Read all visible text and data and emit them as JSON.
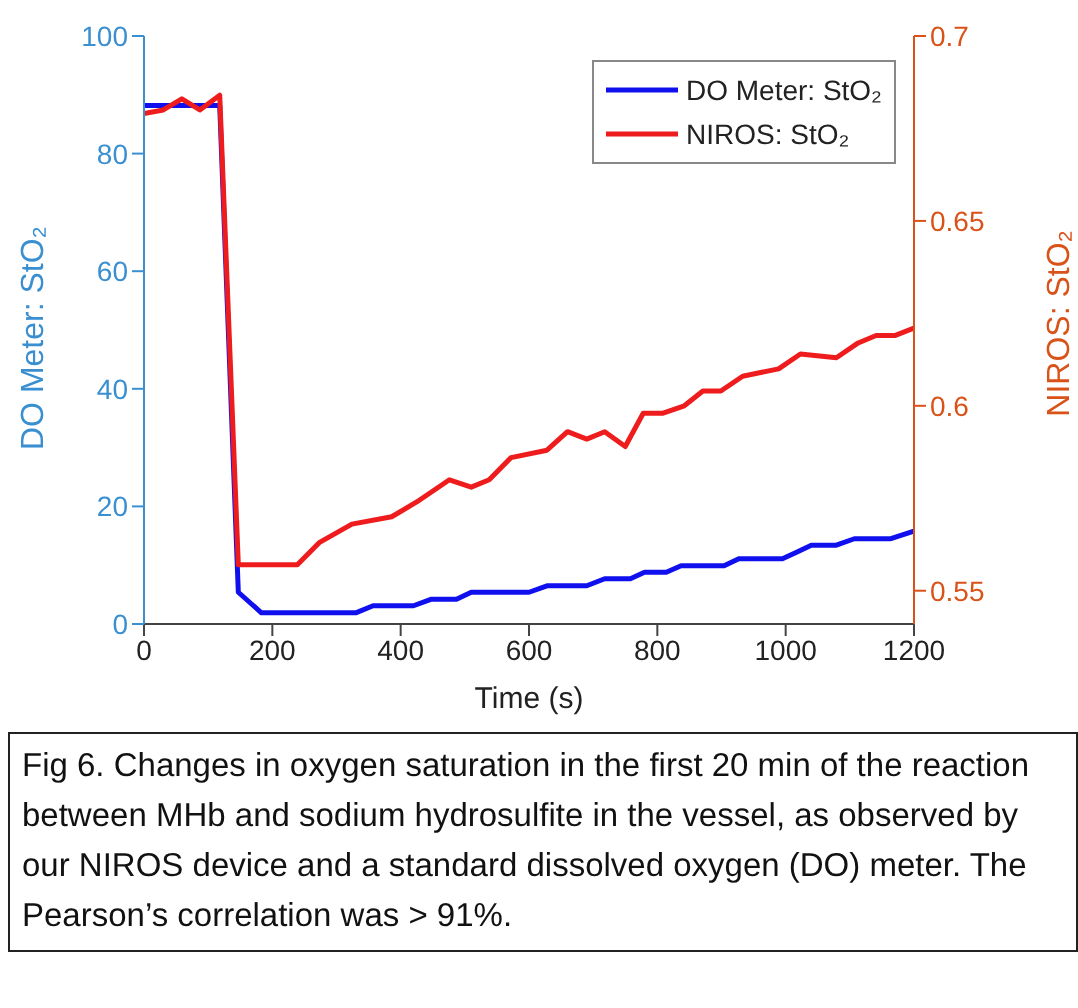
{
  "chart_data": {
    "type": "line",
    "xlabel": "Time (s)",
    "ylabel": "DO Meter: StO₂",
    "y2label": "NIROS: StO₂",
    "xlim": [
      0,
      1200
    ],
    "xticks": [
      0,
      200,
      400,
      600,
      800,
      1000,
      1200
    ],
    "ylim": [
      0,
      100
    ],
    "yticks": [
      0,
      20,
      40,
      60,
      80,
      100
    ],
    "y2lim": [
      0.541,
      0.7
    ],
    "y2ticks": [
      0.55,
      0.6,
      0.65,
      0.7
    ],
    "grid": false,
    "legend": "top right",
    "line_style": "solid",
    "series": [
      {
        "name": "DO Meter: StO₂",
        "color": "#1010ee",
        "x": [
          0,
          118,
          147,
          183,
          330,
          357,
          420,
          447,
          487,
          510,
          600,
          628,
          690,
          718,
          758,
          780,
          814,
          837,
          904,
          927,
          995,
          1017,
          1040,
          1079,
          1107,
          1164,
          1200
        ],
        "values": [
          88.2,
          88.2,
          5.4,
          1.9,
          1.9,
          3.1,
          3.1,
          4.2,
          4.2,
          5.4,
          5.4,
          6.5,
          6.5,
          7.7,
          7.7,
          8.8,
          8.8,
          9.9,
          9.9,
          11.1,
          11.1,
          12.2,
          13.4,
          13.4,
          14.5,
          14.5,
          15.8
        ]
      },
      {
        "name": "NIROS: StO₂",
        "color": "#ee1c1c",
        "axis": "y2",
        "x": [
          0,
          30,
          59,
          87,
          118,
          147,
          211,
          239,
          273,
          324,
          386,
          425,
          476,
          510,
          538,
          572,
          628,
          660,
          690,
          718,
          750,
          778,
          809,
          842,
          871,
          899,
          933,
          961,
          989,
          1023,
          1079,
          1113,
          1141,
          1170,
          1200
        ],
        "values": [
          0.679,
          0.68,
          0.683,
          0.68,
          0.684,
          0.557,
          0.557,
          0.557,
          0.563,
          0.568,
          0.57,
          0.574,
          0.58,
          0.578,
          0.58,
          0.586,
          0.588,
          0.593,
          0.591,
          0.593,
          0.589,
          0.598,
          0.598,
          0.6,
          0.604,
          0.604,
          0.608,
          0.609,
          0.61,
          0.614,
          0.613,
          0.617,
          0.619,
          0.619,
          0.621
        ]
      }
    ],
    "annotations": [
      "Fig 6.  Changes in oxygen saturation in the first 20 min of the reaction between MHb and sodium hydrosulfite in the vessel, as observed by our NIROS device and a standard dissolved oxygen (DO) meter.  The Pearson’s correlation was > 91%."
    ]
  }
}
